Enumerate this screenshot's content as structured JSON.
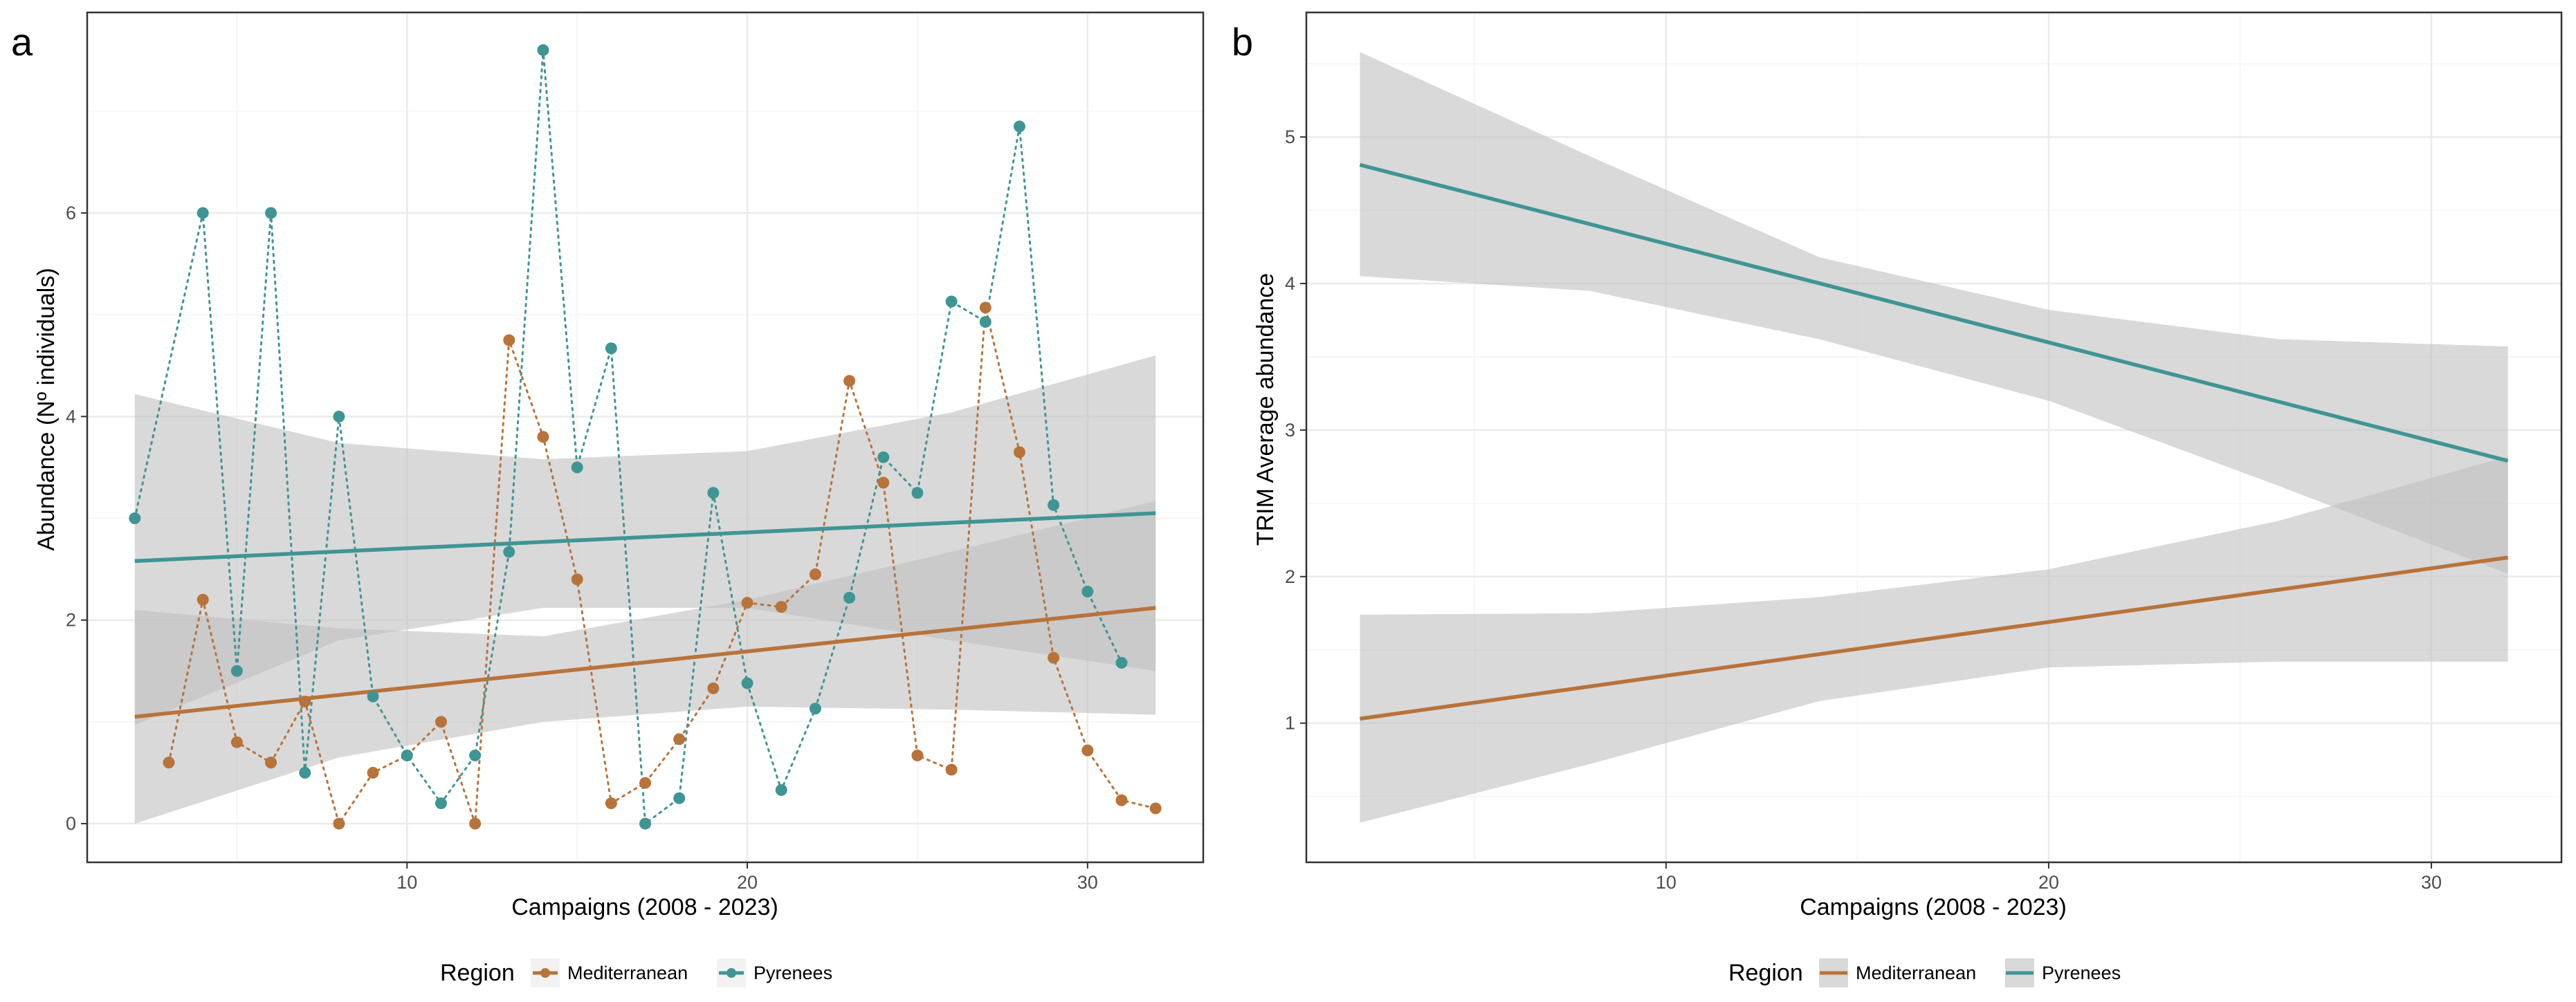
{
  "colors": {
    "mediterranean": "#b8733a",
    "pyrenees": "#3f9594",
    "ribbon": "#bfbfbf",
    "grid": "#ebebeb",
    "border": "#333333"
  },
  "legend": {
    "title": "Region",
    "items": [
      "Mediterranean",
      "Pyrenees"
    ]
  },
  "chart_data": [
    {
      "panel": "a",
      "type": "scatter",
      "title": "",
      "xlabel": "Campaigns (2008 - 2023)",
      "ylabel": "Abundance (Nº individuals)",
      "xlim": [
        0.6,
        33.4
      ],
      "ylim": [
        -0.38,
        7.97
      ],
      "xticks": [
        10,
        20,
        30
      ],
      "yticks": [
        0,
        2,
        4,
        6
      ],
      "grid": true,
      "series": [
        {
          "name": "Mediterranean",
          "x": [
            3,
            4,
            5,
            6,
            7,
            8,
            9,
            10,
            11,
            12,
            13,
            14,
            15,
            16,
            17,
            18,
            19,
            20,
            21,
            22,
            23,
            24,
            25,
            26,
            27,
            28,
            29,
            30,
            31,
            32
          ],
          "y": [
            0.6,
            2.2,
            0.8,
            0.6,
            1.2,
            0.0,
            0.5,
            0.67,
            1.0,
            0.0,
            4.75,
            3.8,
            2.4,
            0.2,
            0.4,
            0.83,
            1.33,
            2.17,
            2.13,
            2.45,
            4.35,
            3.35,
            0.67,
            0.53,
            5.07,
            3.65,
            1.63,
            0.72,
            0.23,
            0.15
          ],
          "trend": {
            "x": [
              2,
              32
            ],
            "y": [
              1.05,
              2.12
            ]
          },
          "ribbon": {
            "x": [
              2,
              8,
              14,
              20,
              26,
              32
            ],
            "lower": [
              0.0,
              0.65,
              1.0,
              1.15,
              1.12,
              1.07
            ],
            "upper": [
              2.1,
              1.92,
              1.84,
              2.2,
              2.67,
              3.17
            ]
          }
        },
        {
          "name": "Pyrenees",
          "x": [
            2,
            4,
            5,
            6,
            7,
            8,
            9,
            10,
            11,
            12,
            13,
            14,
            15,
            16,
            17,
            18,
            19,
            20,
            21,
            22,
            23,
            24,
            25,
            26,
            27,
            28,
            29,
            30,
            31
          ],
          "y": [
            3.0,
            6.0,
            1.5,
            6.0,
            0.5,
            4.0,
            1.25,
            0.67,
            0.2,
            0.67,
            2.67,
            7.6,
            3.5,
            4.67,
            0.0,
            0.25,
            3.25,
            1.38,
            0.33,
            1.13,
            2.22,
            3.6,
            3.25,
            5.13,
            4.93,
            6.85,
            3.13,
            2.28,
            1.58
          ],
          "trend": {
            "x": [
              2,
              32
            ],
            "y": [
              2.58,
              3.05
            ]
          },
          "ribbon": {
            "x": [
              2,
              8,
              14,
              20,
              26,
              32
            ],
            "lower": [
              0.97,
              1.8,
              2.12,
              2.12,
              1.8,
              1.5
            ],
            "upper": [
              4.22,
              3.74,
              3.58,
              3.66,
              4.04,
              4.6
            ]
          }
        }
      ]
    },
    {
      "panel": "b",
      "type": "line",
      "title": "",
      "xlabel": "Campaigns (2008 - 2023)",
      "ylabel": "TRIM Average abundance",
      "xlim": [
        0.6,
        33.4
      ],
      "ylim": [
        0.05,
        5.85
      ],
      "xticks": [
        10,
        20,
        30
      ],
      "yticks": [
        1,
        2,
        3,
        4,
        5
      ],
      "grid": true,
      "series": [
        {
          "name": "Mediterranean",
          "trend": {
            "x": [
              2,
              32
            ],
            "y": [
              1.03,
              2.13
            ]
          },
          "ribbon": {
            "x": [
              2,
              8,
              14,
              20,
              26,
              32
            ],
            "lower": [
              0.32,
              0.72,
              1.15,
              1.38,
              1.42,
              1.42
            ],
            "upper": [
              1.74,
              1.75,
              1.86,
              2.05,
              2.38,
              2.82
            ]
          }
        },
        {
          "name": "Pyrenees",
          "trend": {
            "x": [
              2,
              32
            ],
            "y": [
              4.81,
              2.79
            ]
          },
          "ribbon": {
            "x": [
              2,
              8,
              14,
              20,
              26,
              32
            ],
            "lower": [
              4.05,
              3.95,
              3.62,
              3.2,
              2.62,
              2.02
            ],
            "upper": [
              5.58,
              4.87,
              4.18,
              3.82,
              3.62,
              3.57
            ]
          }
        }
      ]
    }
  ]
}
